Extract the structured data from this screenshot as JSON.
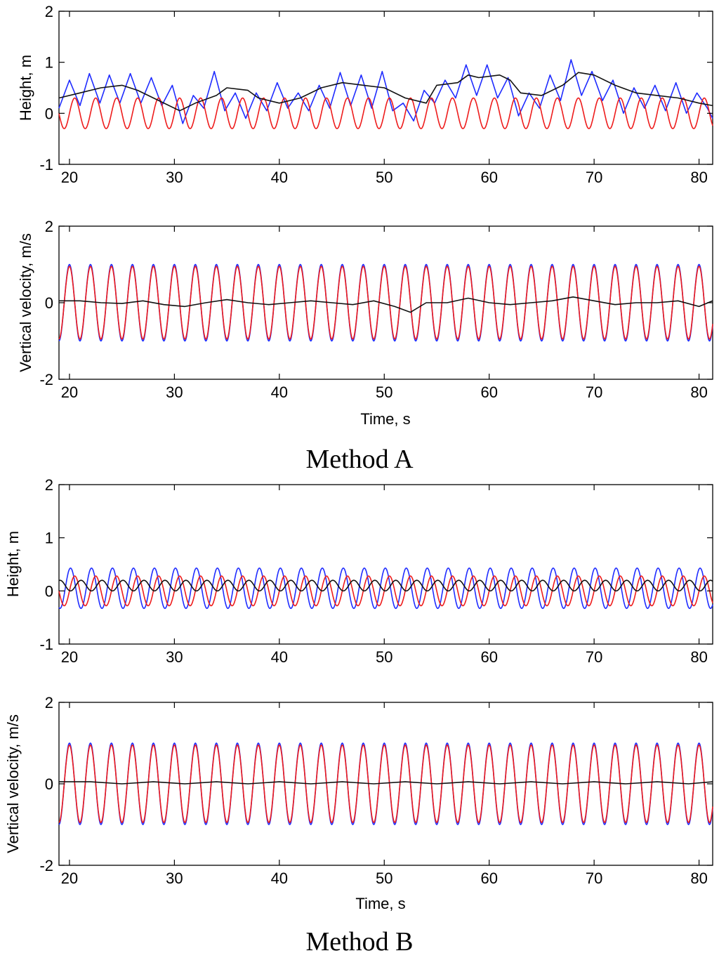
{
  "figure": {
    "section_a_label": "Method A",
    "section_b_label": "Method B"
  },
  "colors": {
    "measured": "#1f2cff",
    "reference": "#ee1c1c",
    "difference": "#111111"
  },
  "chart_data": [
    {
      "id": "a_height",
      "type": "line",
      "section": "Method A",
      "ylabel": "Height, m",
      "xlabel": "",
      "xlim": [
        19,
        81.3
      ],
      "ylim": [
        -1,
        2
      ],
      "xticks": [
        20,
        30,
        40,
        50,
        60,
        70,
        80
      ],
      "yticks": [
        -1,
        0,
        1,
        2
      ],
      "series": [
        {
          "name": "measured",
          "color": "#1f2cff",
          "x": [
            19,
            20,
            21,
            21.9,
            22.9,
            23.8,
            24.8,
            25.8,
            26.8,
            27.8,
            28.8,
            29.8,
            30.8,
            31.8,
            32.8,
            33.8,
            34.8,
            35.8,
            36.8,
            37.8,
            38.8,
            39.8,
            40.8,
            41.8,
            42.8,
            43.8,
            44.8,
            45.8,
            46.8,
            47.8,
            48.8,
            49.8,
            50.8,
            51.8,
            52.8,
            53.8,
            54.8,
            55.8,
            56.8,
            57.8,
            58.8,
            59.8,
            60.8,
            61.8,
            62.8,
            63.8,
            64.8,
            65.8,
            66.8,
            67.8,
            68.8,
            69.8,
            70.8,
            71.8,
            72.8,
            73.8,
            74.8,
            75.8,
            76.8,
            77.8,
            78.8,
            79.8,
            80.8,
            81.3
          ],
          "y": [
            0.1,
            0.65,
            0.15,
            0.78,
            0.2,
            0.75,
            0.2,
            0.78,
            0.2,
            0.7,
            0.15,
            0.55,
            -0.2,
            0.35,
            0.1,
            0.82,
            0.05,
            0.4,
            -0.1,
            0.4,
            0.05,
            0.6,
            0.1,
            0.4,
            0.05,
            0.55,
            0.1,
            0.8,
            0.15,
            0.75,
            0.1,
            0.82,
            0.05,
            0.2,
            -0.15,
            0.45,
            0.2,
            0.65,
            0.3,
            0.95,
            0.35,
            0.95,
            0.3,
            0.7,
            -0.05,
            0.4,
            0.1,
            0.75,
            0.25,
            1.05,
            0.35,
            0.82,
            0.25,
            0.65,
            0.0,
            0.5,
            0.1,
            0.55,
            0.05,
            0.6,
            0.0,
            0.4,
            0.1,
            -0.1
          ]
        },
        {
          "name": "reference",
          "color": "#ee1c1c",
          "kind": "sine",
          "amplitude": 0.3,
          "offset": 0.0,
          "period_s": 2.0,
          "phase_s": 20.0,
          "x_range": [
            19,
            81.3
          ]
        },
        {
          "name": "difference",
          "color": "#111111",
          "x": [
            19,
            21,
            23,
            25,
            26.5,
            28,
            30.5,
            32,
            34,
            35,
            37,
            38,
            40,
            42,
            44,
            46,
            48,
            50,
            52,
            54,
            55,
            57,
            58,
            59,
            61,
            62,
            63,
            65,
            67,
            68.5,
            70,
            72,
            74,
            76,
            78,
            80,
            81.3
          ],
          "y": [
            0.3,
            0.4,
            0.5,
            0.55,
            0.45,
            0.3,
            0.05,
            0.2,
            0.35,
            0.5,
            0.45,
            0.3,
            0.2,
            0.3,
            0.5,
            0.6,
            0.55,
            0.5,
            0.3,
            0.2,
            0.55,
            0.6,
            0.75,
            0.7,
            0.75,
            0.65,
            0.4,
            0.35,
            0.55,
            0.8,
            0.75,
            0.55,
            0.4,
            0.35,
            0.3,
            0.2,
            0.15
          ]
        }
      ]
    },
    {
      "id": "a_velocity",
      "type": "line",
      "section": "Method A",
      "ylabel": "Vertical velocity, m/s",
      "xlabel": "Time, s",
      "xlim": [
        19,
        81.3
      ],
      "ylim": [
        -2,
        2
      ],
      "xticks": [
        20,
        30,
        40,
        50,
        60,
        70,
        80
      ],
      "yticks": [
        -2,
        0,
        2
      ],
      "series": [
        {
          "name": "measured",
          "color": "#1f2cff",
          "kind": "sine",
          "amplitude": 1.0,
          "offset": 0.0,
          "period_s": 2.0,
          "phase_s": 19.5,
          "x_range": [
            19,
            81.3
          ]
        },
        {
          "name": "reference",
          "color": "#ee1c1c",
          "kind": "sine",
          "amplitude": 0.95,
          "offset": 0.0,
          "period_s": 2.0,
          "phase_s": 19.5,
          "x_range": [
            19,
            81.3
          ]
        },
        {
          "name": "difference",
          "color": "#111111",
          "x": [
            19,
            21,
            23,
            25,
            27,
            29,
            31,
            33,
            35,
            37,
            39,
            41,
            43,
            45,
            47,
            49,
            51,
            52.5,
            54,
            56,
            58,
            60,
            62,
            64,
            66,
            68,
            70,
            72,
            74,
            76,
            78,
            80,
            81.3
          ],
          "y": [
            0.05,
            0.05,
            0.0,
            -0.02,
            0.05,
            -0.05,
            -0.1,
            0.0,
            0.08,
            0.0,
            -0.05,
            0.0,
            0.05,
            0.0,
            -0.05,
            0.05,
            -0.1,
            -0.25,
            0.0,
            0.0,
            0.12,
            0.0,
            -0.05,
            0.0,
            0.05,
            0.15,
            0.05,
            -0.05,
            0.0,
            0.0,
            0.05,
            -0.1,
            0.05
          ]
        }
      ]
    },
    {
      "id": "b_height",
      "type": "line",
      "section": "Method B",
      "ylabel": "Height, m",
      "xlabel": "",
      "xlim": [
        19,
        81.3
      ],
      "ylim": [
        -1,
        2
      ],
      "xticks": [
        20,
        30,
        40,
        50,
        60,
        70,
        80
      ],
      "yticks": [
        -1,
        0,
        1,
        2
      ],
      "series": [
        {
          "name": "measured",
          "color": "#1f2cff",
          "kind": "sine",
          "amplitude": 0.38,
          "offset": 0.05,
          "period_s": 2.0,
          "phase_s": 19.6,
          "x_range": [
            19,
            81.3
          ]
        },
        {
          "name": "reference",
          "color": "#ee1c1c",
          "kind": "sine",
          "amplitude": 0.28,
          "offset": 0.0,
          "period_s": 2.0,
          "phase_s": 20.0,
          "x_range": [
            19,
            81.3
          ]
        },
        {
          "name": "difference",
          "color": "#111111",
          "kind": "sine",
          "amplitude": 0.1,
          "offset": 0.1,
          "period_s": 2.0,
          "phase_s": 20.6,
          "x_range": [
            19,
            81.3
          ]
        }
      ]
    },
    {
      "id": "b_velocity",
      "type": "line",
      "section": "Method B",
      "ylabel": "Vertical velocity, m/s",
      "xlabel": "Time, s",
      "xlim": [
        19,
        81.3
      ],
      "ylim": [
        -2,
        2
      ],
      "xticks": [
        20,
        30,
        40,
        50,
        60,
        70,
        80
      ],
      "yticks": [
        -2,
        0,
        2
      ],
      "series": [
        {
          "name": "measured",
          "color": "#1f2cff",
          "kind": "sine",
          "amplitude": 1.0,
          "offset": 0.0,
          "period_s": 2.0,
          "phase_s": 19.5,
          "x_range": [
            19,
            81.3
          ]
        },
        {
          "name": "reference",
          "color": "#ee1c1c",
          "kind": "sine",
          "amplitude": 0.95,
          "offset": 0.0,
          "period_s": 2.0,
          "phase_s": 19.5,
          "x_range": [
            19,
            81.3
          ]
        },
        {
          "name": "difference",
          "color": "#111111",
          "x": [
            19,
            22,
            25,
            28,
            31,
            34,
            37,
            40,
            43,
            46,
            49,
            52,
            55,
            58,
            61,
            64,
            67,
            70,
            73,
            76,
            79,
            81.3
          ],
          "y": [
            0.05,
            0.05,
            0.0,
            0.05,
            0.0,
            0.05,
            0.0,
            0.05,
            0.0,
            0.05,
            0.0,
            0.05,
            0.0,
            0.05,
            0.0,
            0.05,
            0.0,
            0.05,
            0.0,
            0.05,
            0.0,
            0.05
          ]
        }
      ]
    }
  ]
}
